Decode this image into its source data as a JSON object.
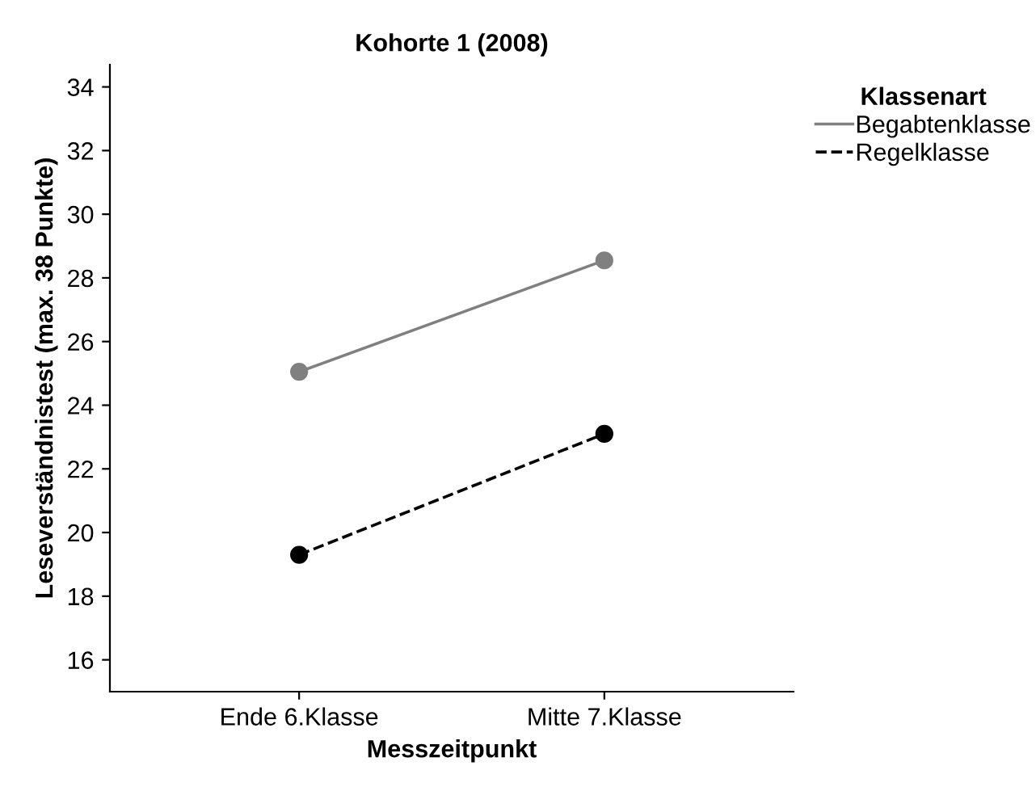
{
  "chart_data": {
    "type": "line",
    "title": "Kohorte 1 (2008)",
    "xlabel": "Messzeitpunkt",
    "ylabel": "Leseverständnistest (max. 38 Punkte)",
    "legend_title": "Klassenart",
    "categories": [
      "Ende 6.Klasse",
      "Mitte 7.Klasse"
    ],
    "series": [
      {
        "name": "Begabtenklasse",
        "color": "#808080",
        "values": [
          25.05,
          28.55
        ],
        "line_style": "solid"
      },
      {
        "name": "Regelklasse",
        "color": "#000000",
        "values": [
          19.3,
          23.1
        ],
        "line_style": "dashed"
      }
    ],
    "ylim": [
      15,
      34.7
    ],
    "yticks": [
      16,
      18,
      20,
      22,
      24,
      26,
      28,
      30,
      32,
      34
    ],
    "marker": "circle",
    "grid": false,
    "legend": "top right"
  }
}
